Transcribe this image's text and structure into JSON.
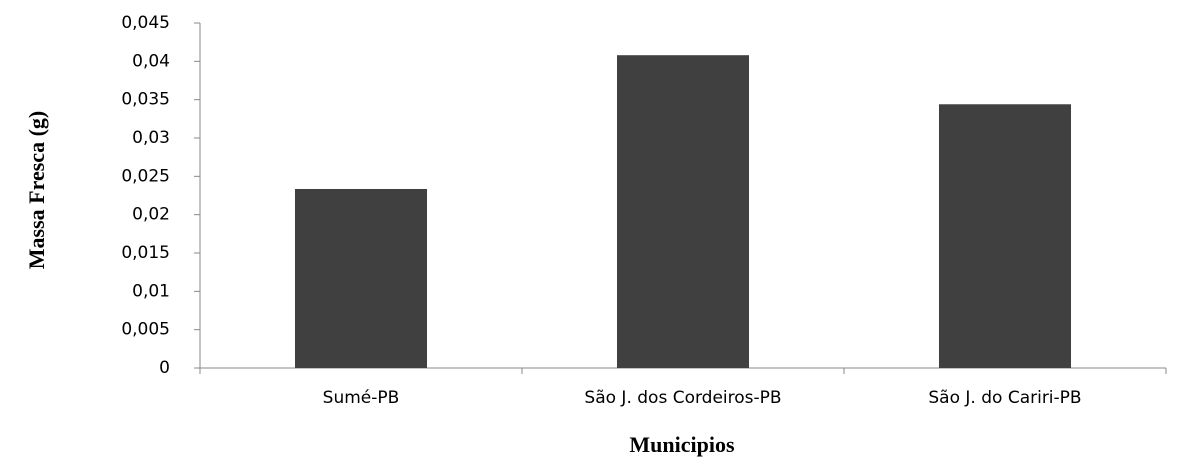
{
  "chart_data": {
    "type": "bar",
    "x_label": "Municipios",
    "y_label": "Massa Fresca (g)",
    "categories": [
      "Sumé-PB",
      "São J. dos Cordeiros-PB",
      "São J. do Cariri-PB"
    ],
    "values": [
      0.02335,
      0.0408,
      0.0344
    ],
    "color": "#404040",
    "ylim": [
      0,
      0.045
    ],
    "yticks": [
      0,
      {
        "value": 0.005,
        "label": "0,005"
      },
      {
        "value": 0.01,
        "label": "0,01"
      },
      {
        "value": 0.015,
        "label": "0,015"
      },
      {
        "value": 0.02,
        "label": "0,02"
      },
      {
        "value": 0.025,
        "label": "0,025"
      },
      {
        "value": 0.03,
        "label": "0,03"
      },
      {
        "value": 0.035,
        "label": "0,035"
      },
      {
        "value": 0.04,
        "label": "0,04"
      },
      {
        "value": 0.045,
        "label": "0,045"
      }
    ],
    "grid": false
  }
}
